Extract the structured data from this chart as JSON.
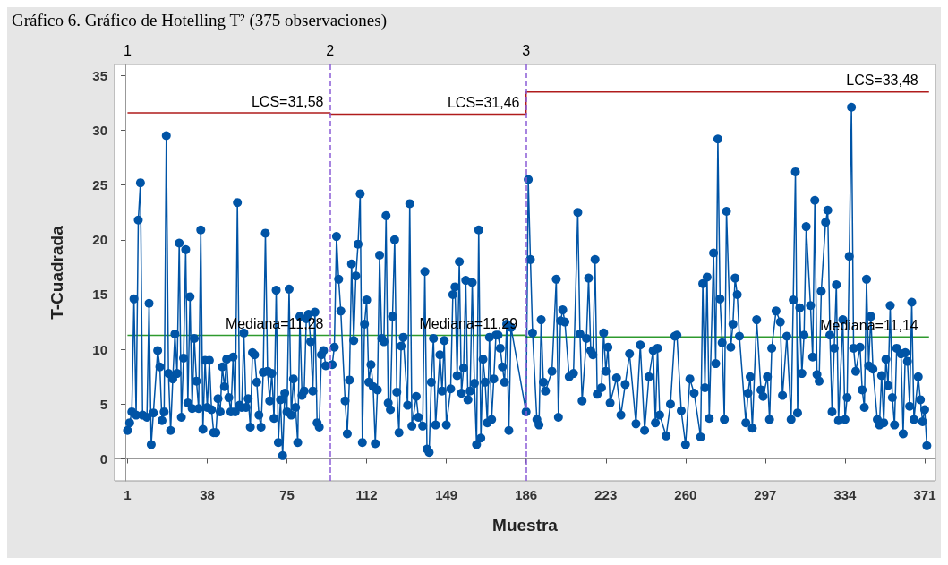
{
  "chart_data": {
    "type": "line",
    "title": "Gráfico 6. Gráfico de Hotelling T² (375 observaciones)",
    "xlabel": "Muestra",
    "ylabel": "T-Cuadrada",
    "color": "#0054a6",
    "marker": "circle",
    "xlim": [
      -5,
      376
    ],
    "xticks": [
      1,
      38,
      75,
      112,
      149,
      186,
      223,
      260,
      297,
      334,
      371
    ],
    "ylim": [
      -2,
      36
    ],
    "yticks": [
      0,
      5,
      10,
      15,
      20,
      25,
      30,
      35
    ],
    "x": [
      1,
      2,
      3,
      4,
      5,
      6,
      7,
      8,
      10,
      11,
      12,
      13,
      15,
      16,
      17,
      18,
      19,
      20,
      21,
      22,
      23,
      24,
      25,
      26,
      27,
      28,
      29,
      30,
      31,
      32,
      33,
      34,
      35,
      36,
      37,
      38,
      39,
      40,
      41,
      42,
      43,
      44,
      45,
      46,
      47,
      48,
      49,
      50,
      51,
      52,
      53,
      54,
      55,
      56,
      57,
      58,
      59,
      60,
      61,
      62,
      63,
      64,
      65,
      66,
      67,
      68,
      69,
      70,
      71,
      72,
      73,
      74,
      75,
      76,
      77,
      78,
      79,
      80,
      81,
      82,
      83,
      84,
      85,
      86,
      87,
      88,
      89,
      90,
      91,
      92,
      93,
      96,
      97,
      98,
      99,
      100,
      102,
      103,
      104,
      105,
      106,
      107,
      108,
      109,
      110,
      111,
      112,
      113,
      114,
      115,
      116,
      117,
      118,
      119,
      120,
      121,
      122,
      123,
      124,
      125,
      126,
      127,
      128,
      129,
      131,
      132,
      133,
      135,
      136,
      138,
      139,
      140,
      141,
      142,
      143,
      144,
      146,
      147,
      148,
      149,
      151,
      152,
      153,
      154,
      155,
      156,
      157,
      158,
      159,
      160,
      161,
      162,
      163,
      164,
      165,
      166,
      167,
      168,
      169,
      170,
      171,
      172,
      173,
      174,
      175,
      176,
      177,
      178,
      179,
      186,
      187,
      188,
      189,
      191,
      192,
      193,
      194,
      195,
      198,
      200,
      201,
      202,
      203,
      204,
      206,
      208,
      210,
      211,
      212,
      214,
      215,
      216,
      217,
      218,
      219,
      221,
      222,
      223,
      224,
      225,
      228,
      230,
      232,
      234,
      237,
      239,
      241,
      243,
      245,
      246,
      247,
      248,
      251,
      253,
      255,
      256,
      258,
      260,
      262,
      264,
      267,
      268,
      269,
      270,
      271,
      273,
      274,
      275,
      276,
      277,
      278,
      279,
      281,
      282,
      283,
      284,
      285,
      288,
      289,
      290,
      291,
      293,
      295,
      296,
      298,
      299,
      300,
      302,
      304,
      305,
      307,
      309,
      310,
      311,
      312,
      313,
      314,
      315,
      316,
      318,
      319,
      320,
      321,
      322,
      323,
      325,
      326,
      327,
      328,
      329,
      330,
      331,
      333,
      334,
      335,
      336,
      337,
      338,
      339,
      341,
      342,
      343,
      344,
      345,
      346,
      347,
      349,
      350,
      351,
      352,
      353,
      354,
      355,
      356,
      357,
      358,
      360,
      361,
      362,
      363,
      364,
      365,
      366,
      368,
      369,
      370,
      371,
      372
    ],
    "values": [
      2.6,
      3.3,
      4.3,
      14.6,
      4.0,
      21.8,
      25.2,
      4.0,
      3.8,
      14.2,
      1.3,
      4.2,
      9.9,
      8.4,
      3.5,
      4.3,
      29.5,
      7.8,
      2.6,
      7.3,
      11.4,
      7.8,
      19.7,
      3.8,
      9.2,
      19.1,
      5.1,
      14.8,
      4.6,
      11.0,
      7.1,
      4.6,
      20.9,
      2.7,
      9.0,
      4.7,
      9.0,
      4.5,
      2.4,
      2.4,
      5.5,
      4.3,
      8.4,
      6.6,
      9.1,
      5.6,
      4.3,
      9.3,
      4.3,
      23.4,
      4.9,
      4.7,
      11.5,
      4.7,
      5.5,
      2.9,
      9.7,
      9.5,
      7.0,
      4.0,
      2.9,
      7.9,
      20.6,
      8.0,
      5.3,
      7.8,
      3.7,
      15.4,
      1.5,
      5.4,
      0.3,
      6.0,
      4.3,
      15.5,
      4.0,
      7.3,
      4.7,
      1.5,
      13.0,
      5.8,
      6.2,
      12.8,
      13.2,
      10.7,
      6.2,
      13.4,
      3.3,
      2.9,
      9.5,
      9.9,
      8.5,
      8.6,
      10.2,
      20.3,
      16.4,
      13.5,
      5.3,
      2.3,
      7.2,
      17.8,
      10.8,
      16.7,
      19.6,
      24.2,
      1.5,
      12.3,
      14.5,
      7.0,
      8.6,
      6.6,
      1.4,
      6.3,
      18.6,
      11.0,
      10.7,
      22.2,
      5.1,
      4.5,
      13.0,
      20.0,
      6.1,
      2.4,
      10.3,
      11.1,
      4.9,
      23.3,
      3.0,
      5.7,
      3.8,
      3.0,
      17.1,
      0.9,
      0.6,
      7.0,
      11.0,
      3.1,
      9.5,
      6.2,
      10.8,
      3.1,
      6.4,
      15.0,
      15.7,
      7.6,
      18.0,
      6.0,
      8.3,
      16.3,
      5.4,
      6.2,
      16.1,
      6.9,
      1.3,
      20.9,
      1.9,
      9.1,
      7.0,
      3.3,
      11.1,
      3.6,
      7.3,
      11.3,
      11.3,
      10.1,
      8.4,
      7.0,
      12.3,
      2.6,
      12.0,
      4.3,
      25.5,
      18.2,
      11.5,
      3.6,
      3.1,
      12.7,
      7.0,
      6.2,
      8.0,
      16.4,
      3.8,
      12.6,
      13.6,
      12.5,
      7.5,
      7.8,
      22.5,
      11.4,
      5.3,
      11.0,
      16.5,
      9.9,
      9.5,
      18.2,
      5.9,
      6.5,
      11.5,
      8.0,
      10.2,
      5.1,
      7.4,
      4.0,
      6.8,
      9.6,
      3.2,
      10.4,
      2.6,
      7.5,
      9.9,
      3.3,
      10.1,
      4.0,
      2.1,
      5.0,
      11.2,
      11.3,
      4.4,
      1.3,
      7.3,
      6.0,
      2.0,
      16.0,
      6.5,
      16.6,
      3.7,
      18.8,
      8.7,
      29.2,
      14.6,
      10.6,
      3.6,
      22.6,
      10.2,
      12.3,
      16.5,
      15.0,
      11.2,
      3.3,
      6.0,
      7.5,
      2.8,
      12.7,
      6.3,
      5.7,
      7.5,
      3.6,
      10.1,
      13.5,
      12.5,
      5.8,
      11.2,
      3.6,
      14.5,
      26.2,
      4.2,
      13.8,
      7.8,
      11.3,
      21.2,
      14.0,
      9.3,
      23.6,
      7.7,
      7.1,
      15.3,
      21.6,
      22.7,
      11.3,
      4.3,
      10.1,
      15.9,
      3.5,
      12.7,
      3.6,
      5.6,
      18.5,
      32.1,
      10.1,
      8.0,
      10.2,
      6.3,
      4.7,
      16.4,
      8.5,
      13.0,
      8.2,
      3.6,
      3.1,
      7.6,
      3.3,
      9.1,
      6.7,
      14.0,
      5.6,
      3.1,
      10.1,
      9.6,
      2.3,
      9.7,
      8.9,
      4.8,
      14.3,
      3.6,
      7.5,
      5.4,
      3.4,
      4.5,
      1.2
    ],
    "series": [
      {
        "type": "line",
        "marker": "none",
        "color": "#b01c1c",
        "x": [
          1,
          95,
          95,
          186,
          186,
          373
        ],
        "values": [
          31.58,
          31.58,
          31.46,
          31.46,
          33.48,
          33.48
        ]
      },
      {
        "type": "line",
        "marker": "none",
        "color": "#2e9a2e",
        "x": [
          1,
          95,
          95,
          186,
          186,
          373
        ],
        "values": [
          11.28,
          11.28,
          11.29,
          11.29,
          11.14,
          11.14
        ]
      }
    ],
    "ref_lines": [
      {
        "axis": "x",
        "value": 95,
        "color": "#8a5cd6",
        "line_style": "dashed"
      },
      {
        "axis": "x",
        "value": 186,
        "color": "#8a5cd6",
        "line_style": "dashed"
      }
    ],
    "annotations": [
      "1",
      "2",
      "3",
      {
        "text": "LCS=31,58",
        "x": 92,
        "y": 31.58
      },
      {
        "text": "LCS=31,46",
        "x": 183,
        "y": 31.46
      },
      {
        "text": "LCS=33,48",
        "x": 368,
        "y": 33.48
      },
      {
        "text": "Mediana=11,28",
        "x": 92,
        "y": 11.28
      },
      {
        "text": "Mediana=11,29",
        "x": 182,
        "y": 11.29
      },
      {
        "text": "Mediana=11,14",
        "x": 368,
        "y": 11.14
      }
    ]
  }
}
